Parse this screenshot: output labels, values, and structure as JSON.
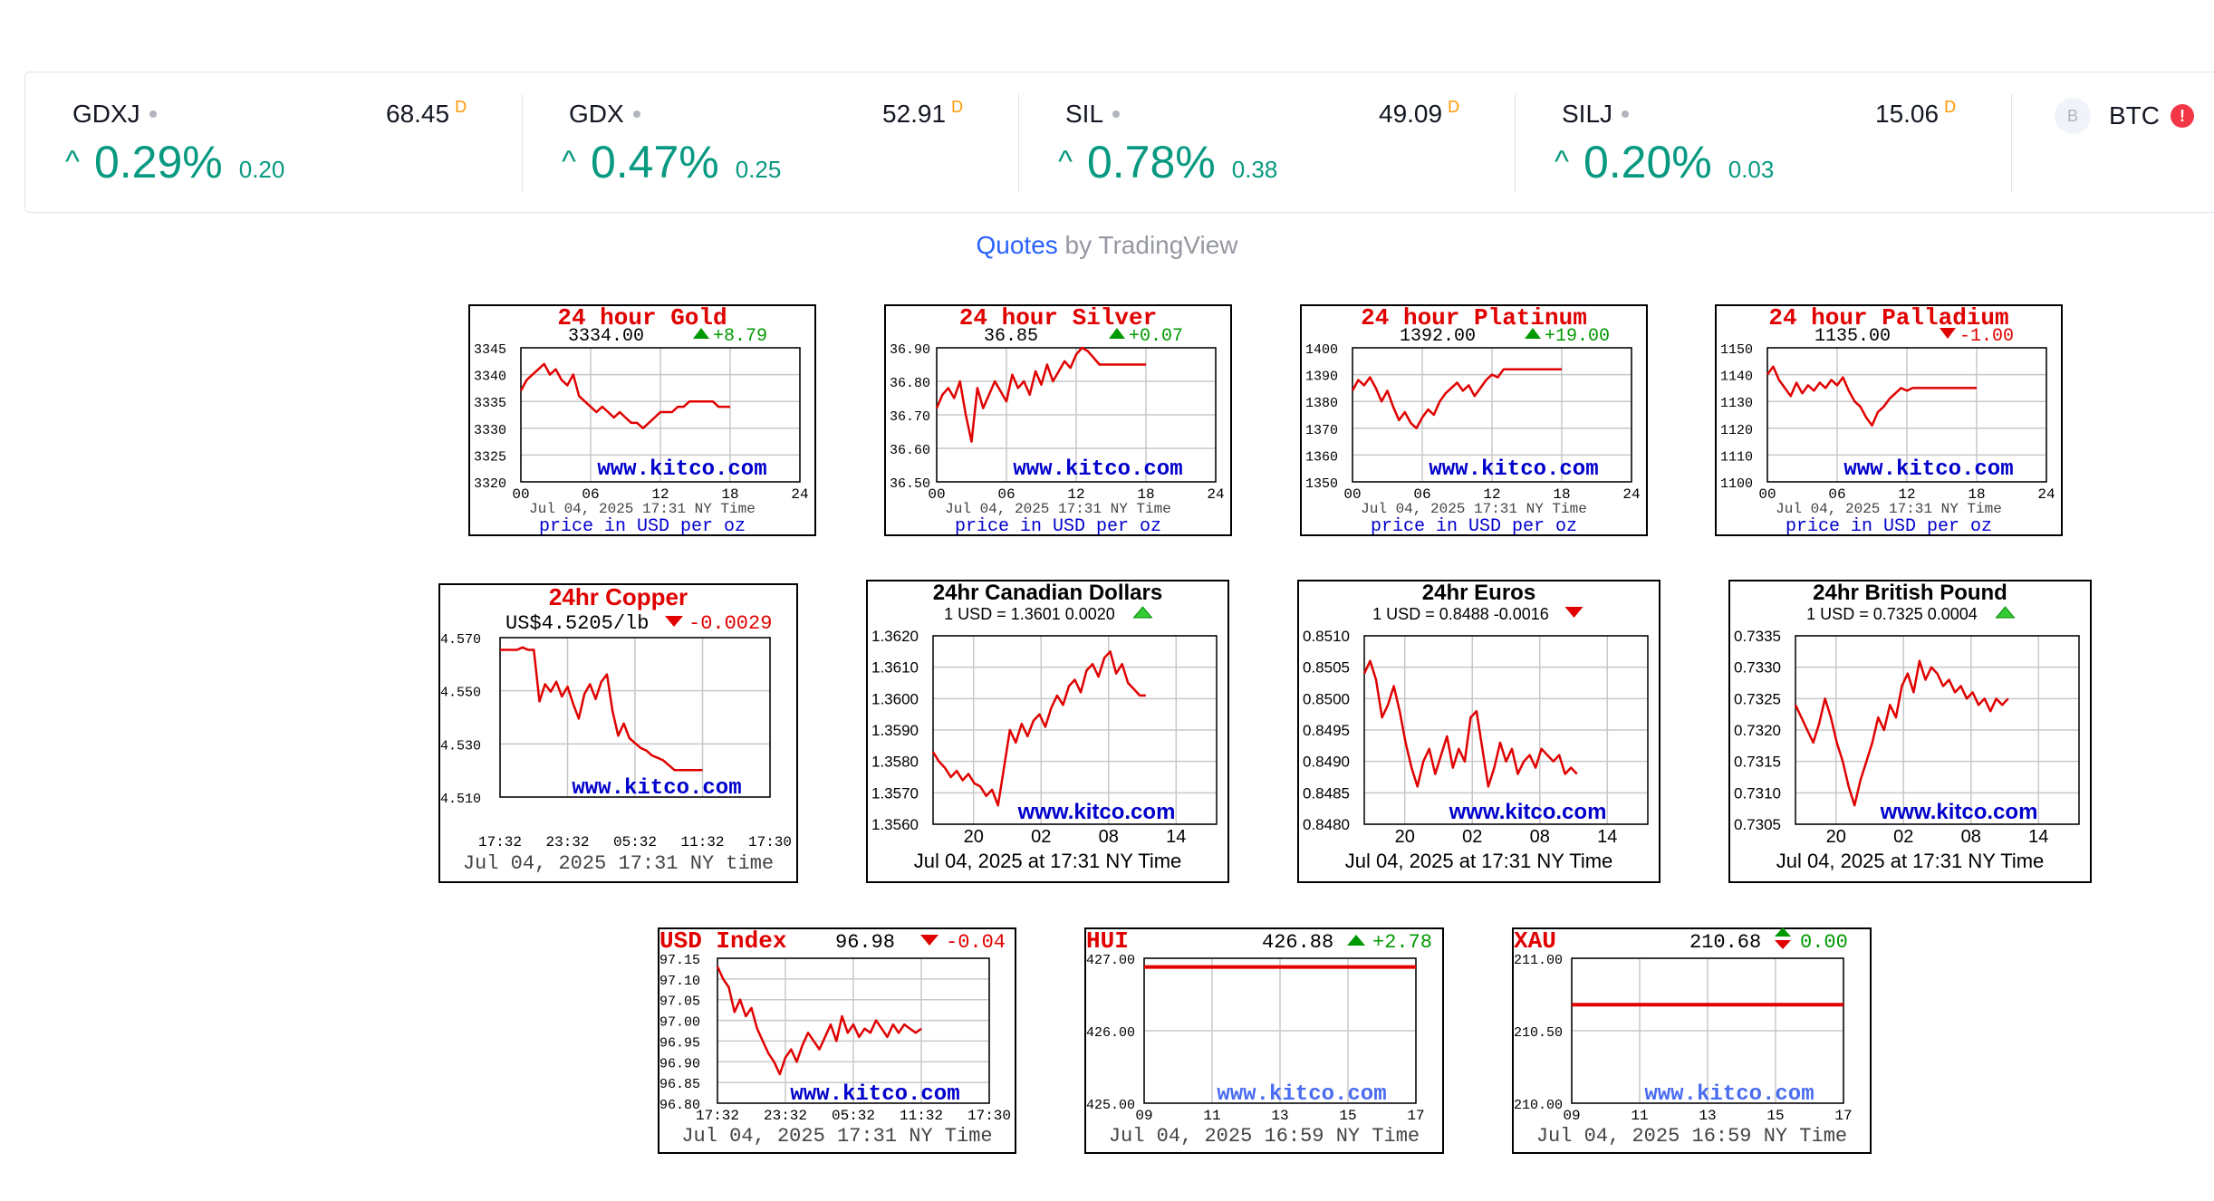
{
  "ticker": {
    "items": [
      {
        "symbol": "GDXJ",
        "price": "68.45",
        "flag": "D",
        "pct": "0.29%",
        "abs": "0.20"
      },
      {
        "symbol": "GDX",
        "price": "52.91",
        "flag": "D",
        "pct": "0.47%",
        "abs": "0.25"
      },
      {
        "symbol": "SIL",
        "price": "49.09",
        "flag": "D",
        "pct": "0.78%",
        "abs": "0.38"
      },
      {
        "symbol": "SILJ",
        "price": "15.06",
        "flag": "D",
        "pct": "0.20%",
        "abs": "0.03"
      }
    ],
    "btc": {
      "logo": "B",
      "symbol": "BTC",
      "alert": "!"
    },
    "up_arrow": "^"
  },
  "credit": {
    "quotes": "Quotes",
    "by": " by TradingView"
  },
  "colors": {
    "accent_green": "#089981",
    "brand_blue": "#2962ff",
    "kitco_red": "#e00000",
    "kitco_blue": "#0000cc",
    "tv_orange": "#ff9800"
  },
  "charts": [
    {
      "title": "24 hour Gold",
      "price": "3334.00",
      "change": "+8.79",
      "dir": "up",
      "yticks": [
        "3345",
        "3340",
        "3335",
        "3330",
        "3325",
        "3320"
      ],
      "xticks": [
        "00",
        "06",
        "12",
        "18",
        "24"
      ],
      "watermark": "www.kitco.com",
      "date": "Jul 04, 2025 17:31 NY Time",
      "footer": "price in USD per oz",
      "chart_data": {
        "type": "line",
        "x": [
          0,
          0.5,
          1,
          1.5,
          2,
          2.5,
          3,
          3.5,
          4,
          4.5,
          5,
          5.5,
          6,
          6.5,
          7,
          7.5,
          8,
          8.5,
          9,
          9.5,
          10,
          10.5,
          11,
          11.5,
          12,
          12.5,
          13,
          13.5,
          14,
          14.5,
          15,
          15.5,
          16,
          16.5,
          17,
          17.5,
          18
        ],
        "y": [
          3337,
          3339,
          3340,
          3341,
          3342,
          3340,
          3341,
          3339,
          3338,
          3340,
          3336,
          3335,
          3334,
          3333,
          3334,
          3333,
          3332,
          3333,
          3332,
          3331,
          3331,
          3330,
          3331,
          3332,
          3333,
          3333,
          3333,
          3334,
          3334,
          3335,
          3335,
          3335,
          3335,
          3335,
          3334,
          3334,
          3334
        ],
        "ylim": [
          3320,
          3345
        ],
        "xlim": [
          0,
          24
        ]
      }
    },
    {
      "title": "24 hour Silver",
      "price": "36.85",
      "change": "+0.07",
      "dir": "up",
      "yticks": [
        "36.90",
        "36.80",
        "36.70",
        "36.60",
        "36.50"
      ],
      "xticks": [
        "00",
        "06",
        "12",
        "18",
        "24"
      ],
      "watermark": "www.kitco.com",
      "date": "Jul 04, 2025 17:31 NY Time",
      "footer": "price in USD per oz",
      "chart_data": {
        "type": "line",
        "x": [
          0,
          0.5,
          1,
          1.5,
          2,
          2.5,
          3,
          3.5,
          4,
          4.5,
          5,
          5.5,
          6,
          6.5,
          7,
          7.5,
          8,
          8.5,
          9,
          9.5,
          10,
          10.5,
          11,
          11.5,
          12,
          12.5,
          13,
          13.5,
          14,
          14.5,
          15,
          15.5,
          16,
          16.5,
          17,
          17.5,
          18
        ],
        "y": [
          36.72,
          36.76,
          36.78,
          36.75,
          36.8,
          36.7,
          36.62,
          36.78,
          36.72,
          36.76,
          36.8,
          36.77,
          36.74,
          36.82,
          36.78,
          36.8,
          36.76,
          36.83,
          36.79,
          36.85,
          36.8,
          36.83,
          36.86,
          36.84,
          36.88,
          36.9,
          36.89,
          36.87,
          36.85,
          36.85,
          36.85,
          36.85,
          36.85,
          36.85,
          36.85,
          36.85,
          36.85
        ],
        "ylim": [
          36.5,
          36.9
        ],
        "xlim": [
          0,
          24
        ]
      }
    },
    {
      "title": "24 hour Platinum",
      "price": "1392.00",
      "change": "+19.00",
      "dir": "up",
      "yticks": [
        "1400",
        "1390",
        "1380",
        "1370",
        "1360",
        "1350"
      ],
      "xticks": [
        "00",
        "06",
        "12",
        "18",
        "24"
      ],
      "watermark": "www.kitco.com",
      "date": "Jul 04, 2025 17:31 NY Time",
      "footer": "price in USD per oz",
      "chart_data": {
        "type": "line",
        "x": [
          0,
          0.5,
          1,
          1.5,
          2,
          2.5,
          3,
          3.5,
          4,
          4.5,
          5,
          5.5,
          6,
          6.5,
          7,
          7.5,
          8,
          8.5,
          9,
          9.5,
          10,
          10.5,
          11,
          11.5,
          12,
          12.5,
          13,
          13.5,
          14,
          14.5,
          15,
          15.5,
          16,
          16.5,
          17,
          17.5,
          18
        ],
        "y": [
          1384,
          1388,
          1386,
          1389,
          1385,
          1380,
          1384,
          1378,
          1373,
          1376,
          1372,
          1370,
          1374,
          1377,
          1375,
          1380,
          1383,
          1385,
          1387,
          1384,
          1386,
          1382,
          1385,
          1388,
          1390,
          1389,
          1392,
          1392,
          1392,
          1392,
          1392,
          1392,
          1392,
          1392,
          1392,
          1392,
          1392
        ],
        "ylim": [
          1350,
          1400
        ],
        "xlim": [
          0,
          24
        ]
      }
    },
    {
      "title": "24 hour Palladium",
      "price": "1135.00",
      "change": "-1.00",
      "dir": "down",
      "yticks": [
        "1150",
        "1140",
        "1130",
        "1120",
        "1110",
        "1100"
      ],
      "xticks": [
        "00",
        "06",
        "12",
        "18",
        "24"
      ],
      "watermark": "www.kitco.com",
      "date": "Jul 04, 2025 17:31 NY Time",
      "footer": "price in USD per oz",
      "chart_data": {
        "type": "line",
        "x": [
          0,
          0.5,
          1,
          1.5,
          2,
          2.5,
          3,
          3.5,
          4,
          4.5,
          5,
          5.5,
          6,
          6.5,
          7,
          7.5,
          8,
          8.5,
          9,
          9.5,
          10,
          10.5,
          11,
          11.5,
          12,
          12.5,
          13,
          13.5,
          14,
          14.5,
          15,
          15.5,
          16,
          16.5,
          17,
          17.5,
          18
        ],
        "y": [
          1140,
          1143,
          1138,
          1135,
          1132,
          1137,
          1133,
          1136,
          1134,
          1137,
          1135,
          1138,
          1136,
          1139,
          1134,
          1130,
          1128,
          1124,
          1121,
          1126,
          1128,
          1131,
          1133,
          1135,
          1134,
          1135,
          1135,
          1135,
          1135,
          1135,
          1135,
          1135,
          1135,
          1135,
          1135,
          1135,
          1135
        ],
        "ylim": [
          1100,
          1150
        ],
        "xlim": [
          0,
          24
        ]
      }
    },
    {
      "title": "24hr Copper",
      "price": "US$4.5205/lb",
      "change": "-0.0029",
      "dir": "down",
      "yticks": [
        "4.570",
        "4.550",
        "4.530",
        "4.510"
      ],
      "xticks": [
        "17:32",
        "23:32",
        "05:32",
        "11:32",
        "17:30"
      ],
      "watermark": "www.kitco.com",
      "date": "Jul 04, 2025 17:31 NY time",
      "footer": "",
      "chart_data": {
        "type": "line",
        "x": [
          0,
          0.5,
          1,
          1.5,
          2,
          2.5,
          3,
          3.5,
          4,
          4.5,
          5,
          5.5,
          6,
          6.5,
          7,
          7.5,
          8,
          8.5,
          9,
          9.5,
          10,
          10.5,
          11,
          11.5,
          12,
          12.5,
          13,
          13.5,
          14,
          14.5,
          15,
          15.5,
          16,
          16.5,
          17,
          17.5,
          18
        ],
        "y": [
          4.57,
          4.57,
          4.57,
          4.57,
          4.571,
          4.57,
          4.57,
          4.549,
          4.556,
          4.553,
          4.557,
          4.551,
          4.555,
          4.548,
          4.542,
          4.552,
          4.556,
          4.55,
          4.557,
          4.56,
          4.545,
          4.535,
          4.54,
          4.534,
          4.532,
          4.53,
          4.529,
          4.527,
          4.526,
          4.525,
          4.523,
          4.521,
          4.521,
          4.521,
          4.521,
          4.521,
          4.521
        ],
        "ylim": [
          4.51,
          4.575
        ],
        "xlim": [
          0,
          24
        ]
      }
    },
    {
      "title": "24hr Canadian Dollars",
      "price": "1 USD = 1.3601  0.0020",
      "change": "",
      "dir": "up",
      "yticks": [
        "1.3620",
        "1.3610",
        "1.3600",
        "1.3590",
        "1.3580",
        "1.3570",
        "1.3560"
      ],
      "xticks": [
        "20",
        "02",
        "08",
        "14"
      ],
      "watermark": "www.kitco.com",
      "date": "Jul 04, 2025 at 17:31 NY Time",
      "footer": "",
      "chart_data": {
        "type": "line",
        "x": [
          0,
          0.5,
          1,
          1.5,
          2,
          2.5,
          3,
          3.5,
          4,
          4.5,
          5,
          5.5,
          6,
          6.5,
          7,
          7.5,
          8,
          8.5,
          9,
          9.5,
          10,
          10.5,
          11,
          11.5,
          12,
          12.5,
          13,
          13.5,
          14,
          14.5,
          15,
          15.5,
          16,
          16.5,
          17,
          17.5,
          18
        ],
        "y": [
          1.3583,
          1.358,
          1.3578,
          1.3575,
          1.3577,
          1.3574,
          1.3576,
          1.3573,
          1.3572,
          1.3569,
          1.3571,
          1.3566,
          1.3578,
          1.359,
          1.3586,
          1.3592,
          1.3588,
          1.3593,
          1.3595,
          1.3591,
          1.3597,
          1.3601,
          1.3598,
          1.3604,
          1.3606,
          1.3602,
          1.3609,
          1.3611,
          1.3607,
          1.3613,
          1.3615,
          1.3608,
          1.3611,
          1.3605,
          1.3603,
          1.3601,
          1.3601
        ],
        "ylim": [
          1.356,
          1.362
        ],
        "xlim": [
          0,
          24
        ]
      }
    },
    {
      "title": "24hr Euros",
      "price": "1 USD = 0.8488  -0.0016",
      "change": "",
      "dir": "down",
      "yticks": [
        "0.8510",
        "0.8505",
        "0.8500",
        "0.8495",
        "0.8490",
        "0.8485",
        "0.8480"
      ],
      "xticks": [
        "20",
        "02",
        "08",
        "14"
      ],
      "watermark": "www.kitco.com",
      "date": "Jul 04, 2025 at 17:31 NY Time",
      "footer": "",
      "chart_data": {
        "type": "line",
        "x": [
          0,
          0.5,
          1,
          1.5,
          2,
          2.5,
          3,
          3.5,
          4,
          4.5,
          5,
          5.5,
          6,
          6.5,
          7,
          7.5,
          8,
          8.5,
          9,
          9.5,
          10,
          10.5,
          11,
          11.5,
          12,
          12.5,
          13,
          13.5,
          14,
          14.5,
          15,
          15.5,
          16,
          16.5,
          17,
          17.5,
          18
        ],
        "y": [
          0.8504,
          0.8506,
          0.8503,
          0.8497,
          0.8499,
          0.8502,
          0.8498,
          0.8493,
          0.8489,
          0.8486,
          0.849,
          0.8492,
          0.8488,
          0.8491,
          0.8494,
          0.8489,
          0.8492,
          0.849,
          0.8497,
          0.8498,
          0.8492,
          0.8486,
          0.8489,
          0.8493,
          0.849,
          0.8492,
          0.8488,
          0.849,
          0.8491,
          0.8489,
          0.8492,
          0.8491,
          0.849,
          0.8491,
          0.8488,
          0.8489,
          0.8488
        ],
        "ylim": [
          0.848,
          0.851
        ],
        "xlim": [
          0,
          24
        ]
      }
    },
    {
      "title": "24hr British Pound",
      "price": "1 USD = 0.7325  0.0004",
      "change": "",
      "dir": "up",
      "yticks": [
        "0.7335",
        "0.7330",
        "0.7325",
        "0.7320",
        "0.7315",
        "0.7310",
        "0.7305"
      ],
      "xticks": [
        "20",
        "02",
        "08",
        "14"
      ],
      "watermark": "www.kitco.com",
      "date": "Jul 04, 2025 at 17:31 NY Time",
      "footer": "",
      "chart_data": {
        "type": "line",
        "x": [
          0,
          0.5,
          1,
          1.5,
          2,
          2.5,
          3,
          3.5,
          4,
          4.5,
          5,
          5.5,
          6,
          6.5,
          7,
          7.5,
          8,
          8.5,
          9,
          9.5,
          10,
          10.5,
          11,
          11.5,
          12,
          12.5,
          13,
          13.5,
          14,
          14.5,
          15,
          15.5,
          16,
          16.5,
          17,
          17.5,
          18
        ],
        "y": [
          0.7324,
          0.7322,
          0.732,
          0.7318,
          0.7321,
          0.7325,
          0.7322,
          0.7318,
          0.7315,
          0.7311,
          0.7308,
          0.7312,
          0.7315,
          0.7318,
          0.7322,
          0.732,
          0.7324,
          0.7322,
          0.7327,
          0.7329,
          0.7326,
          0.7331,
          0.7328,
          0.733,
          0.7329,
          0.7327,
          0.7328,
          0.7326,
          0.7327,
          0.7325,
          0.7326,
          0.7324,
          0.7325,
          0.7323,
          0.7325,
          0.7324,
          0.7325
        ],
        "ylim": [
          0.7305,
          0.7335
        ],
        "xlim": [
          0,
          24
        ]
      }
    },
    {
      "title": "USD Index",
      "price": "96.98",
      "change": "-0.04",
      "dir": "down",
      "yticks": [
        "97.15",
        "97.10",
        "97.05",
        "97.00",
        "96.95",
        "96.90",
        "96.85",
        "96.80"
      ],
      "xticks": [
        "17:32",
        "23:32",
        "05:32",
        "11:32",
        "17:30"
      ],
      "watermark": "www.kitco.com",
      "date": "Jul 04, 2025 17:31 NY Time",
      "footer": "",
      "chart_data": {
        "type": "line",
        "x": [
          0,
          0.5,
          1,
          1.5,
          2,
          2.5,
          3,
          3.5,
          4,
          4.5,
          5,
          5.5,
          6,
          6.5,
          7,
          7.5,
          8,
          8.5,
          9,
          9.5,
          10,
          10.5,
          11,
          11.5,
          12,
          12.5,
          13,
          13.5,
          14,
          14.5,
          15,
          15.5,
          16,
          16.5,
          17,
          17.5,
          18
        ],
        "y": [
          97.13,
          97.1,
          97.08,
          97.02,
          97.05,
          97.01,
          97.03,
          96.98,
          96.95,
          96.92,
          96.9,
          96.87,
          96.91,
          96.93,
          96.9,
          96.94,
          96.97,
          96.95,
          96.93,
          96.96,
          96.99,
          96.95,
          97.01,
          96.97,
          96.99,
          96.96,
          96.98,
          96.97,
          97.0,
          96.98,
          96.96,
          96.99,
          96.97,
          96.99,
          96.98,
          96.97,
          96.98
        ],
        "ylim": [
          96.8,
          97.15
        ],
        "xlim": [
          0,
          24
        ]
      }
    },
    {
      "title": "HUI",
      "price": "426.88",
      "change": "+2.78",
      "dir": "up",
      "yticks": [
        "427.00",
        "426.00",
        "425.00"
      ],
      "xticks": [
        "09",
        "11",
        "13",
        "15",
        "17"
      ],
      "watermark": "www.kitco.com",
      "date": "Jul 04, 2025 16:59 NY Time",
      "footer": "",
      "chart_data": {
        "type": "line",
        "x": [
          9,
          17
        ],
        "y": [
          426.88,
          426.88
        ],
        "ylim": [
          425,
          427
        ],
        "xlim": [
          9,
          17
        ]
      }
    },
    {
      "title": "XAU",
      "price": "210.68",
      "change": "0.00",
      "dir": "flat",
      "yticks": [
        "211.00",
        "210.50",
        "210.00"
      ],
      "xticks": [
        "09",
        "11",
        "13",
        "15",
        "17"
      ],
      "watermark": "www.kitco.com",
      "date": "Jul 04, 2025 16:59 NY Time",
      "footer": "",
      "chart_data": {
        "type": "line",
        "x": [
          9,
          17
        ],
        "y": [
          210.68,
          210.68
        ],
        "ylim": [
          210,
          211
        ],
        "xlim": [
          9,
          17
        ]
      }
    }
  ]
}
